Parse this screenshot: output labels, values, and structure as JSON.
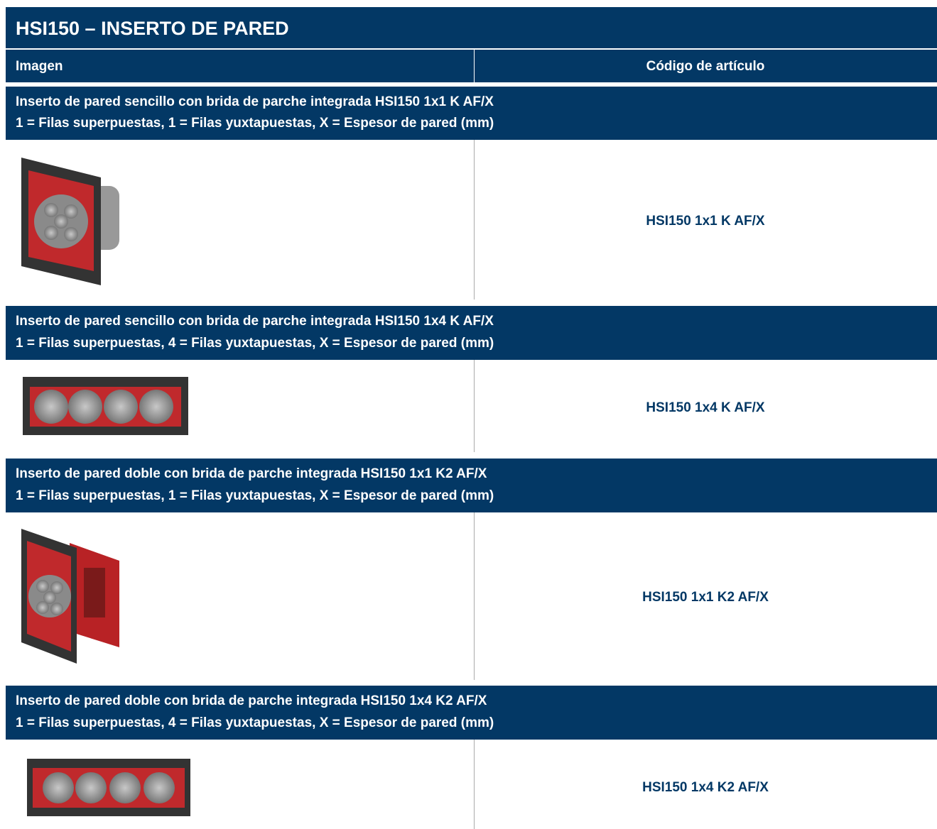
{
  "header": {
    "title": "HSI150 – INSERTO DE PARED"
  },
  "table": {
    "columns": [
      "Imagen",
      "Código de artículo"
    ],
    "sections": [
      {
        "title": "Inserto de pared sencillo con brida de parche integrada HSI150 1x1 K AF/X",
        "subtitle": "1 = Filas superpuestas, 1 = Filas yuxtapuestas, X = Espesor de pared (mm)",
        "code": "HSI150 1x1 K AF/X"
      },
      {
        "title": "Inserto de pared sencillo con brida de parche integrada HSI150 1x4 K AF/X",
        "subtitle": "1 = Filas superpuestas, 4 = Filas yuxtapuestas, X = Espesor de pared (mm)",
        "code": "HSI150 1x4 K AF/X"
      },
      {
        "title": "Inserto de pared doble con brida de parche integrada HSI150 1x1 K2 AF/X",
        "subtitle": "1 = Filas superpuestas, 1 = Filas yuxtapuestas, X = Espesor de pared (mm)",
        "code": "HSI150 1x1 K2 AF/X"
      },
      {
        "title": "Inserto de pared doble con brida de parche integrada HSI150 1x4 K2 AF/X",
        "subtitle": "1 = Filas superpuestas, 4 = Filas yuxtapuestas, X = Espesor de pared (mm)",
        "code": "HSI150 1x4 K2 AF/X"
      }
    ]
  }
}
